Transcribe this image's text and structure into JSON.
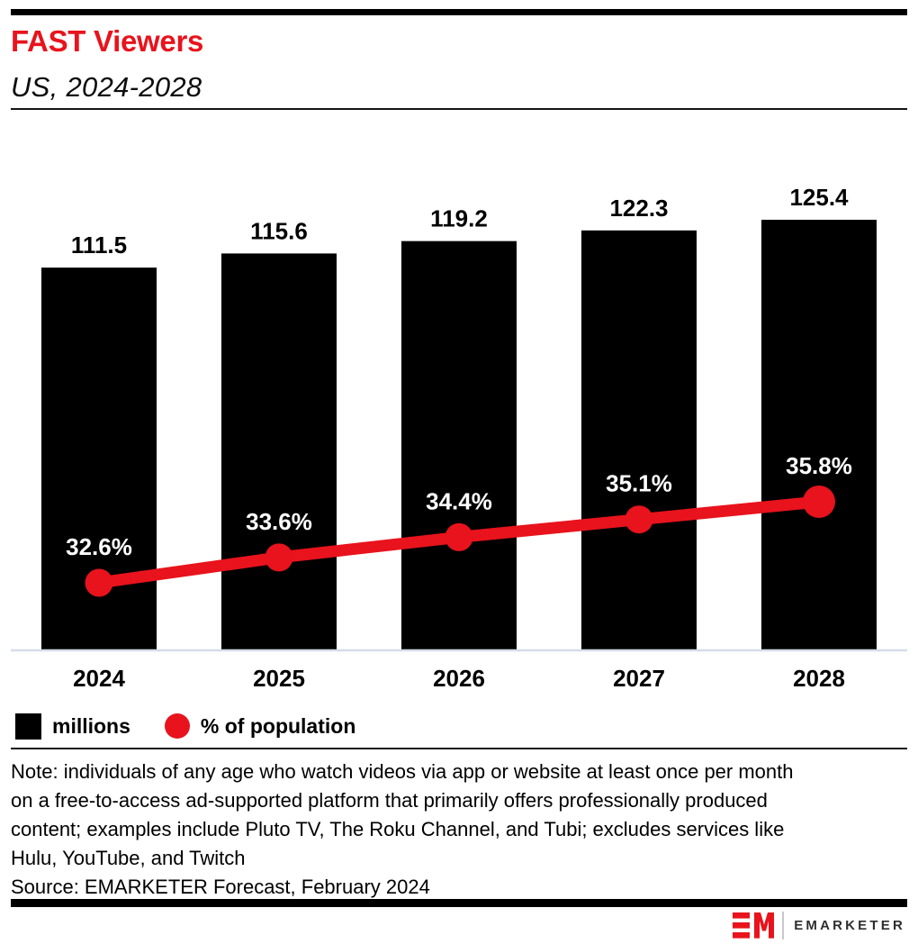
{
  "header": {
    "title": "FAST Viewers",
    "subtitle": "US, 2024-2028"
  },
  "chart_data": {
    "type": "bar",
    "title": "FAST Viewers",
    "subtitle": "US, 2024-2028",
    "categories": [
      "2024",
      "2025",
      "2026",
      "2027",
      "2028"
    ],
    "series": [
      {
        "name": "millions",
        "type": "bar",
        "values": [
          111.5,
          115.6,
          119.2,
          122.3,
          125.4
        ],
        "color": "#000000"
      },
      {
        "name": "% of population",
        "type": "line",
        "values": [
          32.6,
          33.6,
          34.4,
          35.1,
          35.8
        ],
        "color": "#e8131c"
      }
    ],
    "legend": [
      {
        "label": "millions",
        "swatch": "square",
        "color": "#000000"
      },
      {
        "label": "% of population",
        "swatch": "circle",
        "color": "#e8131c"
      }
    ],
    "grid": false,
    "legend_position": "bottom-left",
    "bar_axis_min": 0,
    "value_label_format_bar": "one-decimal",
    "value_label_format_line": "one-decimal-percent"
  },
  "note": {
    "lines": [
      "Note: individuals of any age who watch videos via app or website at least once per month",
      "on a free-to-access ad-supported platform that primarily offers professionally produced",
      "content; examples include Pluto TV, The Roku Channel, and Tubi; excludes services like",
      "Hulu, YouTube, and Twitch"
    ]
  },
  "source": "Source: EMARKETER Forecast, February 2024",
  "footer": {
    "logo_monogram": "EM",
    "logo_text": "EMARKETER"
  },
  "colors": {
    "accent_red": "#e8131c",
    "bar_black": "#000000",
    "baseline_gray": "#d5dbe8"
  }
}
